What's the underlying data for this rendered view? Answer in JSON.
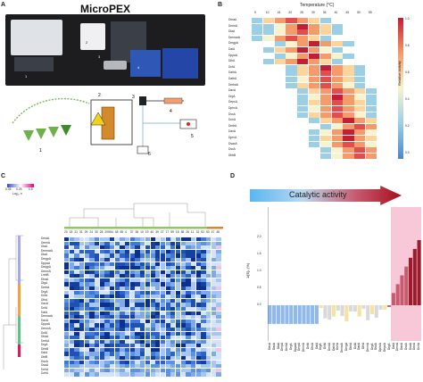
{
  "panels": {
    "a": "A",
    "b": "B",
    "c": "C",
    "d": "D"
  },
  "panel_a": {
    "title": "MicroPEX",
    "photo_labels": [
      "1",
      "2",
      "3",
      "4"
    ],
    "schematic_labels": [
      "1",
      "2",
      "3",
      "4",
      "5",
      "6"
    ]
  },
  "panel_b": {
    "axis_title": "Temperature (°C)",
    "temperatures": [
      "5",
      "10",
      "15",
      "20",
      "25",
      "30",
      "35",
      "40",
      "45",
      "50",
      "55"
    ],
    "colorbar_label": "Relative activity",
    "colorbar_ticks": [
      "1.0",
      "0.8",
      "0.6",
      "0.4",
      "0.2",
      "0.0"
    ],
    "enzymes": [
      "DmaA",
      "DmmA",
      "DlaA",
      "DmmarA",
      "DmgpA",
      "DalA",
      "DppaA",
      "DlhA",
      "DcfA",
      "DalhA",
      "DathA",
      "DmbaA",
      "DaxA",
      "DrgA",
      "DepxA",
      "DphxA",
      "DvxA",
      "DchA",
      "DmbA",
      "DaxA",
      "DprxA",
      "DsaxA",
      "DsxA",
      "DhbB"
    ]
  },
  "panel_c": {
    "scale_label": "Log₁₀ r²",
    "scale_ticks": [
      "0.05",
      "0.25",
      "0.5"
    ],
    "column_labels": [
      "20",
      "18",
      "21",
      "31",
      "29",
      "24",
      "30",
      "28",
      "209",
      "54",
      "48",
      "55",
      "4",
      "37",
      "38",
      "10",
      "19",
      "40",
      "39",
      "27",
      "17",
      "59",
      "18",
      "58",
      "26",
      "11",
      "32",
      "52",
      "53",
      "47",
      "48"
    ],
    "enzymes": [
      "DmaA",
      "DmmA",
      "DlaA",
      "DmmarA",
      "DlaA",
      "DmgpA",
      "DppaA",
      "DmgpA",
      "DmoxA",
      "LmhB",
      "DhaA",
      "DlgA",
      "DmbA",
      "DrgA",
      "DcfA",
      "DlhA",
      "DaxA",
      "DcfA",
      "DalA",
      "DmmarA",
      "DaxA",
      "DppaA",
      "DmoxA",
      "DcfA",
      "DhaA",
      "DmbA",
      "DrgA",
      "DhbB",
      "DalA",
      "DbtB",
      "DsxA",
      "DsaA",
      "DchA",
      "DzhA"
    ]
  },
  "panel_d": {
    "title": "Catalytic activity",
    "ylabel": "1/[E]₀ (%)",
    "yticks": [
      "2.0",
      "1.5",
      "1.0",
      "0.5",
      "0.0"
    ],
    "labels": [
      "DasA",
      "DaxA",
      "DlaA",
      "DmpA",
      "DmbA",
      "DrgA",
      "DppaA",
      "DmpA",
      "DmmA",
      "DcfA",
      "DhxA",
      "DalA",
      "DrgA",
      "DcfA",
      "DmbA",
      "DalhA",
      "DvhA",
      "DmoxA",
      "DmgA",
      "DbhA",
      "DcfA",
      "DaxA",
      "DlhA",
      "DmmA",
      "DrgA",
      "DvxA",
      "DphxA",
      "DepxA",
      "DrgA",
      "DalA",
      "DmoA",
      "DaxA",
      "DsxA",
      "DsaA",
      "DoxA",
      "DchA"
    ]
  },
  "colors": {
    "accent_red": "#b2182b",
    "accent_blue": "#3b6fd6",
    "bar_blue": "#8fb8ec",
    "highlight_pink": "#f7c9d8"
  }
}
